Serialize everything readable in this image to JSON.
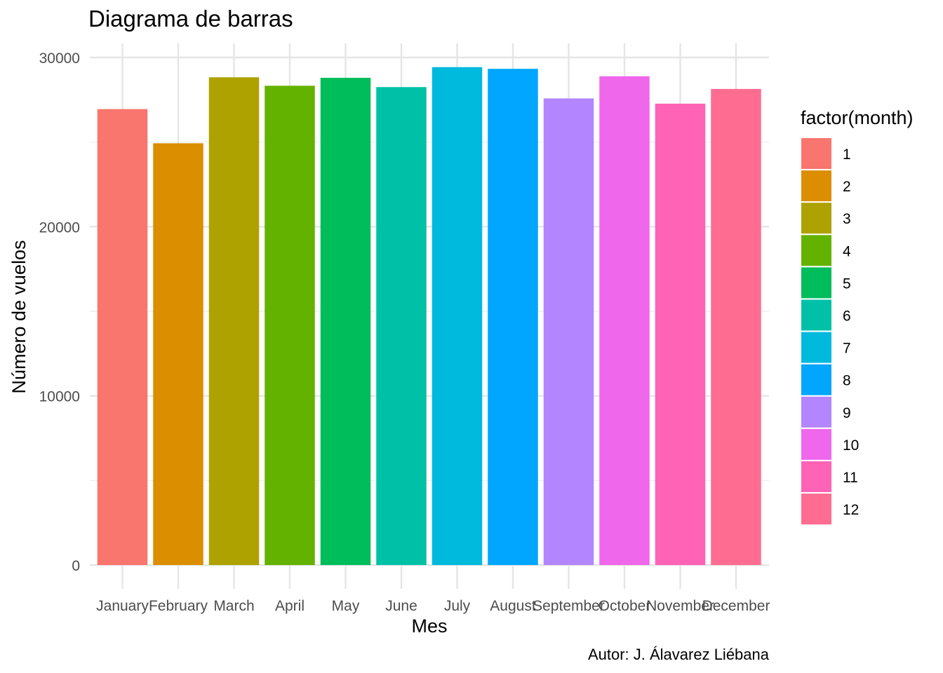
{
  "chart_data": {
    "type": "bar",
    "title": "Diagrama de barras",
    "xlabel": "Mes",
    "ylabel": "Número de vuelos",
    "caption": "Autor: J. Álavarez Liébana",
    "categories": [
      "January",
      "February",
      "March",
      "April",
      "May",
      "June",
      "July",
      "August",
      "September",
      "October",
      "November",
      "December"
    ],
    "values": [
      26950,
      24930,
      28830,
      28330,
      28800,
      28250,
      29430,
      29330,
      27580,
      28890,
      27270,
      28140
    ],
    "ylim": [
      0,
      30000
    ],
    "yticks": [
      0,
      10000,
      20000,
      30000
    ],
    "ytick_labels": [
      "0",
      "10000",
      "20000",
      "30000"
    ],
    "grid": true,
    "legend": {
      "title": "factor(month)",
      "position": "right",
      "labels": [
        "1",
        "2",
        "3",
        "4",
        "5",
        "6",
        "7",
        "8",
        "9",
        "10",
        "11",
        "12"
      ]
    },
    "colors": [
      "#F8766D",
      "#DB8E00",
      "#AEA200",
      "#64B200",
      "#00BD5C",
      "#00C1A7",
      "#00BADE",
      "#00A6FF",
      "#B385FF",
      "#EF67EB",
      "#FF63B6",
      "#FF6C91"
    ]
  }
}
